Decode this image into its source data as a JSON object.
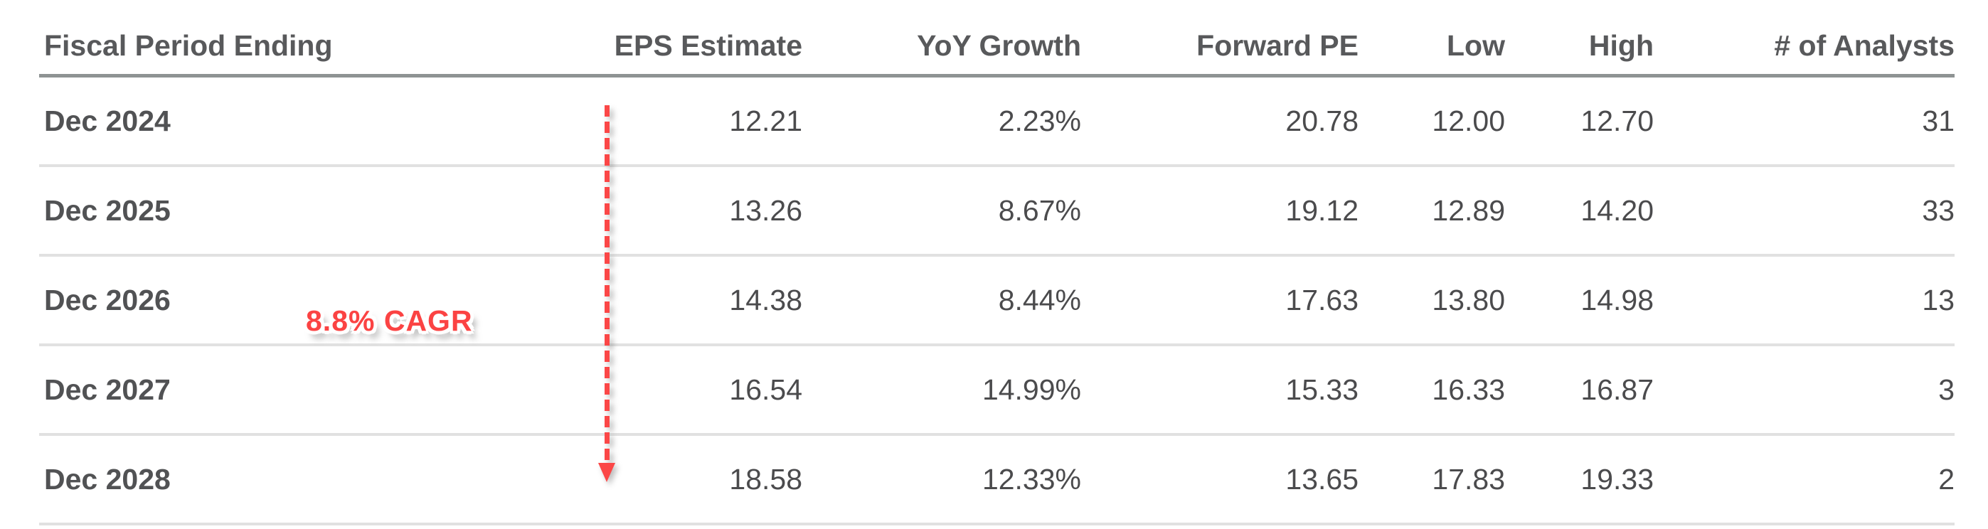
{
  "table": {
    "columns": [
      {
        "key": "period",
        "label": "Fiscal Period Ending"
      },
      {
        "key": "eps_estimate",
        "label": "EPS Estimate"
      },
      {
        "key": "yoy_growth",
        "label": "YoY Growth"
      },
      {
        "key": "forward_pe",
        "label": "Forward PE"
      },
      {
        "key": "low",
        "label": "Low"
      },
      {
        "key": "high",
        "label": "High"
      },
      {
        "key": "analysts",
        "label": "# of Analysts"
      }
    ],
    "rows": [
      {
        "period": "Dec 2024",
        "eps_estimate": "12.21",
        "yoy_growth": "2.23%",
        "forward_pe": "20.78",
        "low": "12.00",
        "high": "12.70",
        "analysts": "31"
      },
      {
        "period": "Dec 2025",
        "eps_estimate": "13.26",
        "yoy_growth": "8.67%",
        "forward_pe": "19.12",
        "low": "12.89",
        "high": "14.20",
        "analysts": "33"
      },
      {
        "period": "Dec 2026",
        "eps_estimate": "14.38",
        "yoy_growth": "8.44%",
        "forward_pe": "17.63",
        "low": "13.80",
        "high": "14.98",
        "analysts": "13"
      },
      {
        "period": "Dec 2027",
        "eps_estimate": "16.54",
        "yoy_growth": "14.99%",
        "forward_pe": "15.33",
        "low": "16.33",
        "high": "16.87",
        "analysts": "3"
      },
      {
        "period": "Dec 2028",
        "eps_estimate": "18.58",
        "yoy_growth": "12.33%",
        "forward_pe": "13.65",
        "low": "17.83",
        "high": "19.33",
        "analysts": "2"
      }
    ]
  },
  "annotation": {
    "cagr_label": "8.8% CAGR",
    "arrow_direction": "down"
  },
  "colors": {
    "accent_red": "#fb4747",
    "header_text": "#58595b",
    "body_text": "#4b4b4d",
    "header_rule": "#8e9393",
    "row_divider": "#e1e1e1",
    "background": "#ffffff"
  }
}
